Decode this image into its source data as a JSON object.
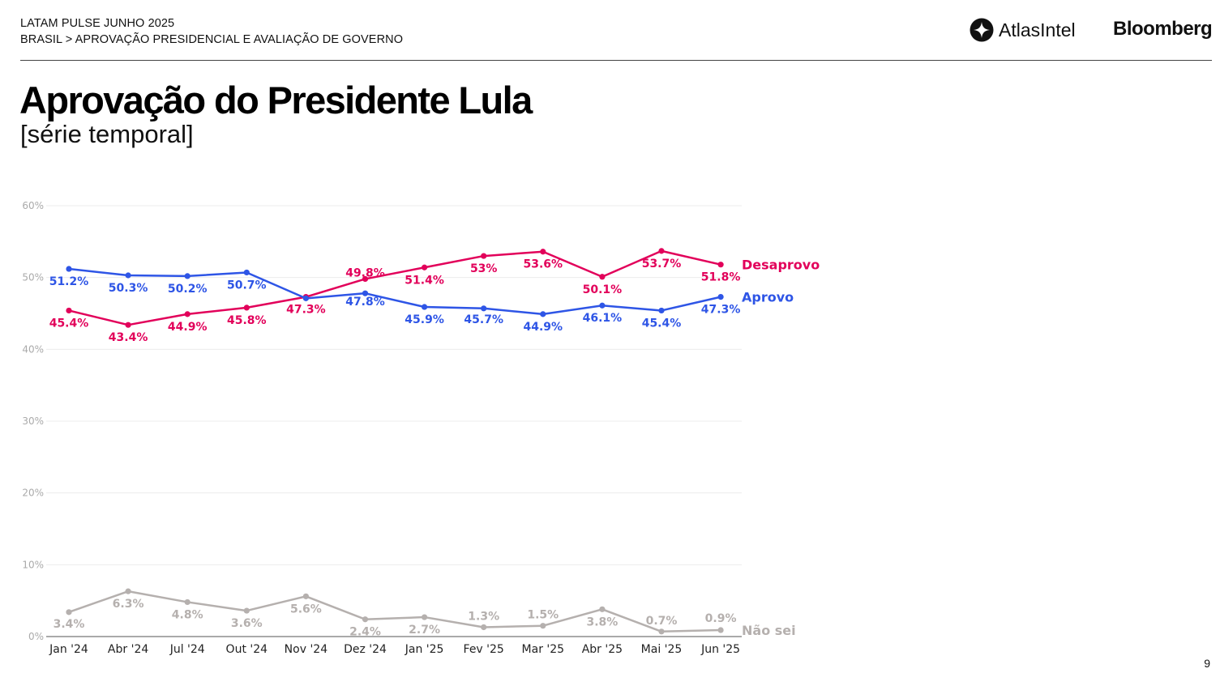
{
  "header": {
    "line1": "LATAM PULSE JUNHO 2025",
    "line2": "BRASIL > APROVAÇÃO PRESIDENCIAL E AVALIAÇÃO DE GOVERNO",
    "brand_atlas": "AtlasIntel",
    "brand_bloomberg": "Bloomberg"
  },
  "title": "Aprovação do Presidente Lula",
  "subtitle": "[série temporal]",
  "page_number": "9",
  "chart_data": {
    "type": "line",
    "categories": [
      "Jan '24",
      "Abr '24",
      "Jul '24",
      "Out '24",
      "Nov '24",
      "Dez '24",
      "Jan '25",
      "Fev '25",
      "Mar '25",
      "Abr '25",
      "Mai '25",
      "Jun '25"
    ],
    "ylim": [
      0,
      60
    ],
    "yticks": [
      "0%",
      "10%",
      "20%",
      "30%",
      "40%",
      "50%",
      "60%"
    ],
    "grid": true,
    "series": [
      {
        "name": "Desaprovo",
        "color": "#e2005a",
        "values": [
          45.4,
          43.4,
          44.9,
          45.8,
          47.3,
          49.8,
          51.4,
          53.0,
          53.6,
          50.1,
          53.7,
          51.8
        ],
        "labels": [
          "45.4%",
          "43.4%",
          "44.9%",
          "45.8%",
          "47.3%",
          "49.8%",
          "51.4%",
          "53%",
          "53.6%",
          "50.1%",
          "53.7%",
          "51.8%"
        ]
      },
      {
        "name": "Aprovo",
        "color": "#2e55e6",
        "values": [
          51.2,
          50.3,
          50.2,
          50.7,
          47.1,
          47.8,
          45.9,
          45.7,
          44.9,
          46.1,
          45.4,
          47.3
        ],
        "labels": [
          "51.2%",
          "50.3%",
          "50.2%",
          "50.7%",
          "",
          "47.8%",
          "45.9%",
          "45.7%",
          "44.9%",
          "46.1%",
          "45.4%",
          "47.3%"
        ]
      },
      {
        "name": "Não sei",
        "color": "#b5b0ae",
        "values": [
          3.4,
          6.3,
          4.8,
          3.6,
          5.6,
          2.4,
          2.7,
          1.3,
          1.5,
          3.8,
          0.7,
          0.9
        ],
        "labels": [
          "3.4%",
          "6.3%",
          "4.8%",
          "3.6%",
          "5.6%",
          "2.4%",
          "2.7%",
          "1.3%",
          "1.5%",
          "3.8%",
          "0.7%",
          "0.9%"
        ]
      }
    ]
  }
}
